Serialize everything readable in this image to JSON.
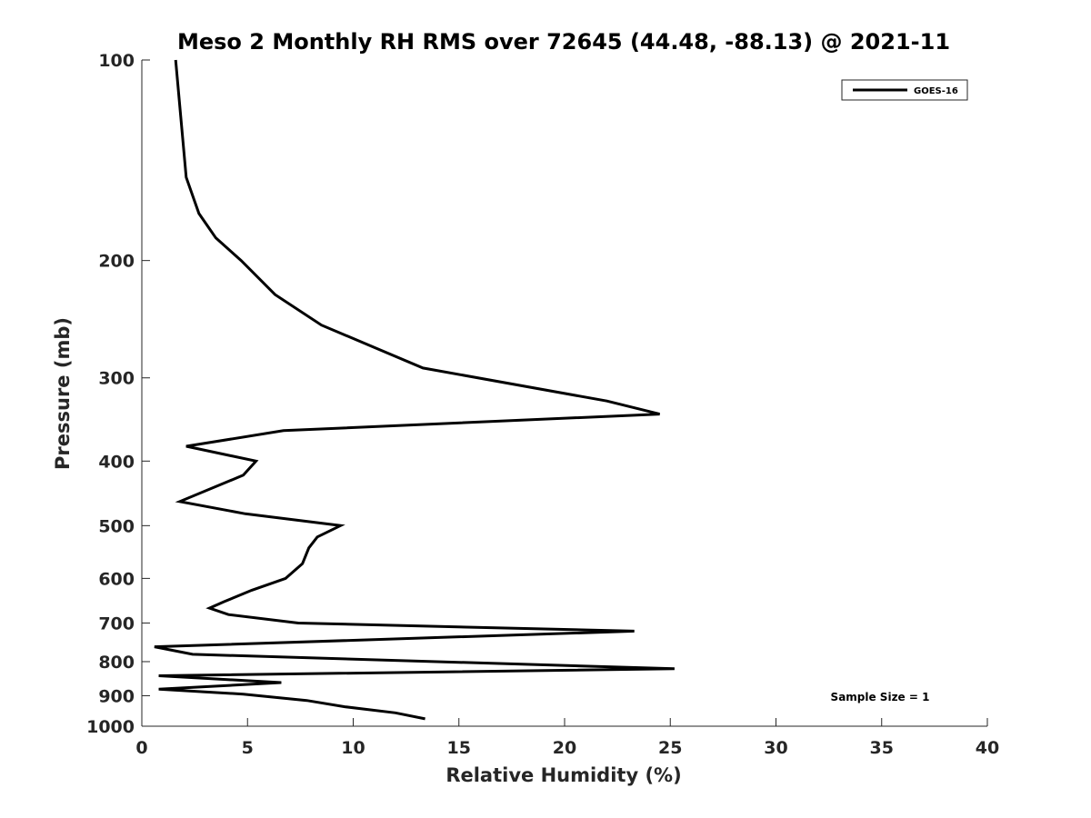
{
  "chart_data": {
    "type": "line",
    "title": "Meso 2 Monthly RH RMS over 72645 (44.48, -88.13) @ 2021-11",
    "xlabel": "Relative Humidity (%)",
    "ylabel": "Pressure (mb)",
    "xlim": [
      0,
      40
    ],
    "ylim": [
      100,
      1000
    ],
    "y_scale": "log",
    "y_reversed": true,
    "x_ticks": [
      0,
      5,
      10,
      15,
      20,
      25,
      30,
      35,
      40
    ],
    "y_ticks": [
      100,
      200,
      300,
      400,
      500,
      600,
      700,
      800,
      900,
      1000
    ],
    "grid": false,
    "legend_position": "top-right",
    "annotation": "Sample Size = 1",
    "series": [
      {
        "name": "GOES-16",
        "color": "#000000",
        "points": [
          {
            "x": 1.6,
            "y": 100
          },
          {
            "x": 2.1,
            "y": 150
          },
          {
            "x": 2.7,
            "y": 170
          },
          {
            "x": 3.5,
            "y": 185
          },
          {
            "x": 4.7,
            "y": 200
          },
          {
            "x": 6.3,
            "y": 225
          },
          {
            "x": 8.5,
            "y": 250
          },
          {
            "x": 13.3,
            "y": 290
          },
          {
            "x": 22.0,
            "y": 325
          },
          {
            "x": 24.5,
            "y": 340
          },
          {
            "x": 6.7,
            "y": 360
          },
          {
            "x": 2.1,
            "y": 380
          },
          {
            "x": 5.4,
            "y": 400
          },
          {
            "x": 4.8,
            "y": 420
          },
          {
            "x": 1.8,
            "y": 460
          },
          {
            "x": 4.9,
            "y": 480
          },
          {
            "x": 9.4,
            "y": 500
          },
          {
            "x": 8.3,
            "y": 520
          },
          {
            "x": 7.9,
            "y": 540
          },
          {
            "x": 7.6,
            "y": 570
          },
          {
            "x": 6.8,
            "y": 600
          },
          {
            "x": 5.2,
            "y": 625
          },
          {
            "x": 3.9,
            "y": 650
          },
          {
            "x": 3.2,
            "y": 665
          },
          {
            "x": 4.1,
            "y": 680
          },
          {
            "x": 7.4,
            "y": 700
          },
          {
            "x": 23.3,
            "y": 720
          },
          {
            "x": 0.6,
            "y": 760
          },
          {
            "x": 2.4,
            "y": 780
          },
          {
            "x": 25.2,
            "y": 820
          },
          {
            "x": 0.8,
            "y": 840
          },
          {
            "x": 6.6,
            "y": 860
          },
          {
            "x": 0.8,
            "y": 880
          },
          {
            "x": 4.8,
            "y": 895
          },
          {
            "x": 7.8,
            "y": 915
          },
          {
            "x": 9.6,
            "y": 935
          },
          {
            "x": 12.0,
            "y": 955
          },
          {
            "x": 13.4,
            "y": 975
          }
        ]
      }
    ]
  }
}
